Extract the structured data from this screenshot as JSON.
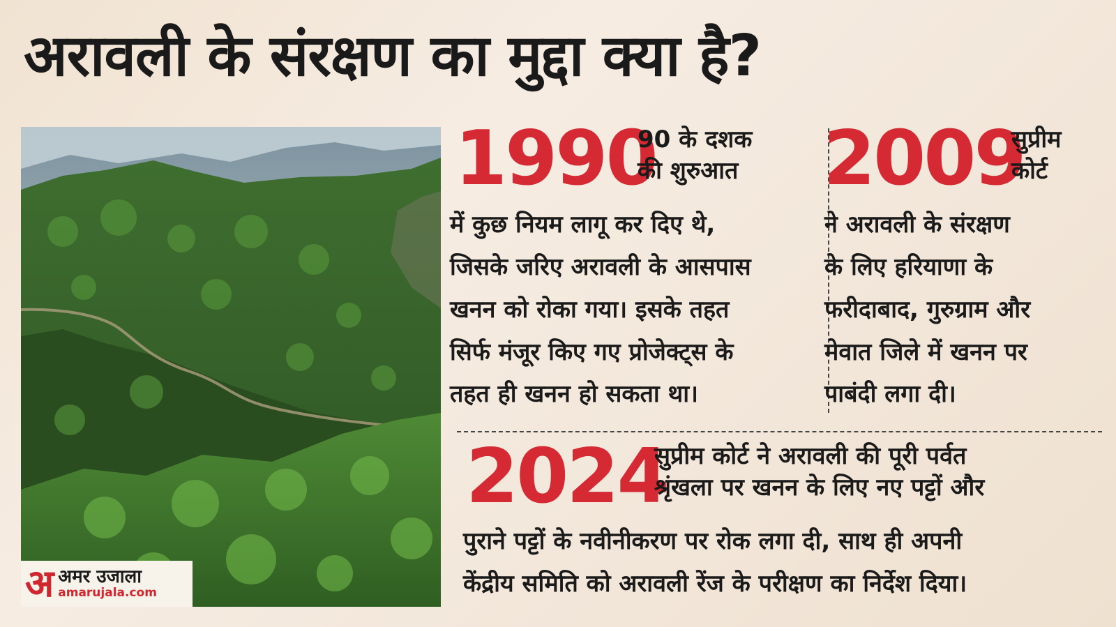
{
  "title": "अरावली के संरक्षण का मुद्दा क्या है?",
  "logo": {
    "mark": "अ",
    "name": "अमर उजाला",
    "url": "amarujala.com"
  },
  "entries": [
    {
      "year": "1990",
      "lead": [
        "90 के दशक",
        "की शुरुआत"
      ],
      "body": [
        "में कुछ नियम लागू कर दिए थे,",
        "जिसके जरिए अरावली के आसपास",
        "खनन को रोका गया। इसके तहत",
        "सिर्फ मंजूर किए गए प्रोजेक्ट्स के",
        "तहत ही खनन हो सकता था।"
      ]
    },
    {
      "year": "2009",
      "lead": [
        "सुप्रीम",
        "कोर्ट"
      ],
      "body": [
        "ने अरावली के संरक्षण",
        "के लिए हरियाणा के",
        "फरीदाबाद, गुरुग्राम और",
        "मेवात जिले में खनन पर",
        "पाबंदी लगा दी।"
      ]
    },
    {
      "year": "2024",
      "lead": [
        "सुप्रीम कोर्ट ने अरावली की पूरी पर्वत",
        "श्रृंखला पर खनन के लिए नए पट्टों और"
      ],
      "body": [
        "पुराने पट्टों के नवीनीकरण पर रोक लगा दी, साथ ही अपनी",
        "केंद्रीय समिति को अरावली रेंज के परीक्षण का निर्देश दिया।"
      ]
    }
  ],
  "colors": {
    "accent": "#d52a34",
    "text": "#1a1a1a",
    "background": "#f3e8dc"
  },
  "photo": {
    "subject": "forested-aravalli-hills"
  }
}
